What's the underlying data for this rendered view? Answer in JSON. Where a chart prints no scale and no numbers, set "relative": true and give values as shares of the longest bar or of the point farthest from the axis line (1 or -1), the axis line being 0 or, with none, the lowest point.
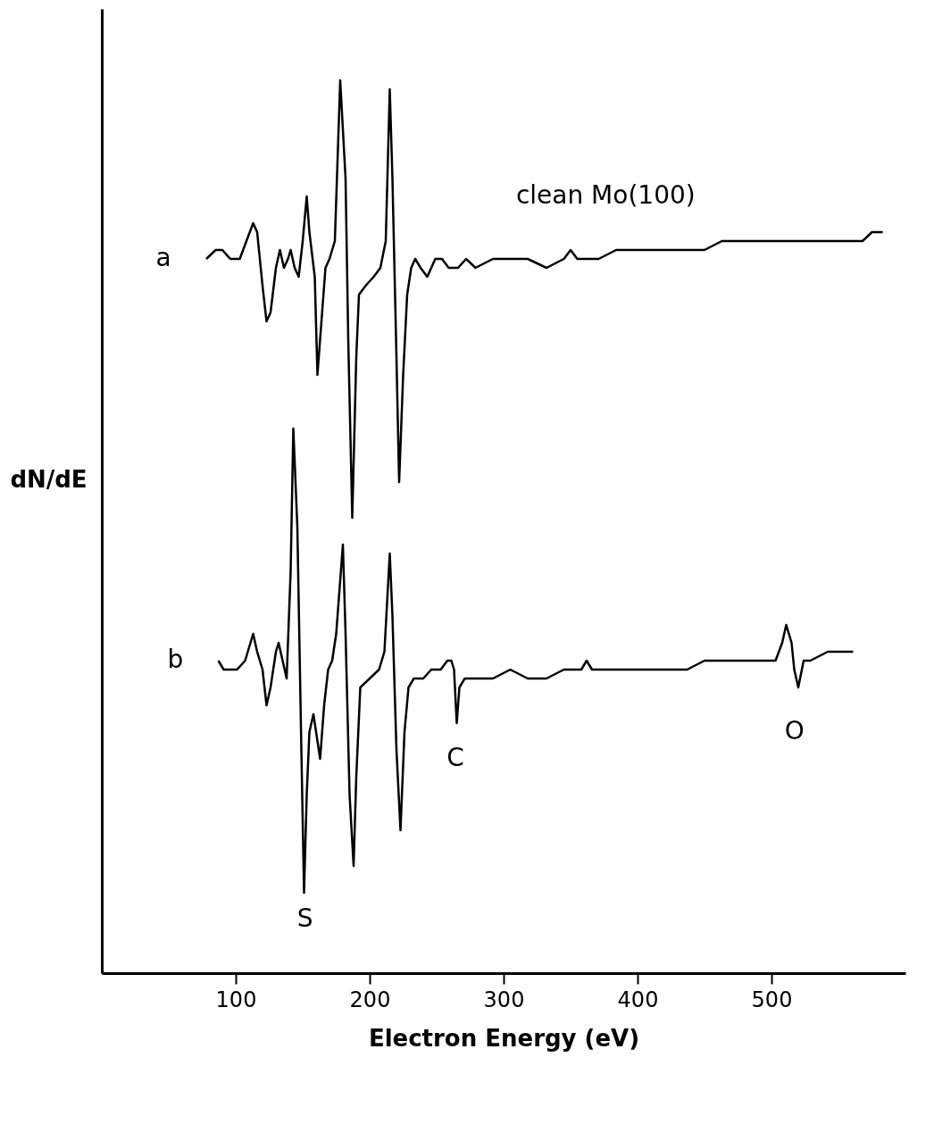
{
  "chart_data": {
    "type": "line",
    "relative": true,
    "xlabel": "Electron Energy (eV)",
    "ylabel": "dN/dE",
    "xlim": [
      0,
      600
    ],
    "xticks": [
      100,
      200,
      300,
      400,
      500
    ],
    "grid": false,
    "marker": "none",
    "line_style": "solid",
    "series": [
      {
        "name": "a",
        "color": "#000000",
        "x": [
          78,
          85,
          90,
          96,
          103,
          108,
          113,
          116,
          120,
          123,
          126,
          130,
          133,
          136,
          139,
          141,
          144,
          147,
          150,
          153,
          155,
          159,
          161,
          165,
          167,
          170,
          174,
          178,
          182,
          184,
          187,
          190,
          192,
          197,
          203,
          208,
          212,
          215,
          217,
          220,
          222,
          225,
          228,
          231,
          234,
          238,
          243,
          249,
          254,
          259,
          266,
          272,
          279,
          292,
          305,
          318,
          332,
          345,
          350,
          355,
          361,
          371,
          384,
          397,
          411,
          424,
          437,
          450,
          463,
          476,
          490,
          503,
          516,
          529,
          542,
          555,
          568,
          575,
          579,
          583
        ],
        "values": [
          0.8,
          0.81,
          0.81,
          0.8,
          0.8,
          0.82,
          0.84,
          0.83,
          0.77,
          0.73,
          0.74,
          0.79,
          0.81,
          0.79,
          0.8,
          0.81,
          0.79,
          0.78,
          0.82,
          0.87,
          0.83,
          0.78,
          0.67,
          0.75,
          0.79,
          0.8,
          0.82,
          1.0,
          0.89,
          0.71,
          0.51,
          0.69,
          0.76,
          0.77,
          0.78,
          0.79,
          0.82,
          0.99,
          0.89,
          0.69,
          0.55,
          0.67,
          0.76,
          0.79,
          0.8,
          0.79,
          0.78,
          0.8,
          0.8,
          0.79,
          0.79,
          0.8,
          0.79,
          0.8,
          0.8,
          0.8,
          0.79,
          0.8,
          0.81,
          0.8,
          0.8,
          0.8,
          0.81,
          0.81,
          0.81,
          0.81,
          0.81,
          0.81,
          0.82,
          0.82,
          0.82,
          0.82,
          0.82,
          0.82,
          0.82,
          0.82,
          0.82,
          0.83,
          0.83,
          0.83
        ]
      },
      {
        "name": "b",
        "color": "#000000",
        "x": [
          87,
          91,
          97,
          101,
          107,
          113,
          116,
          120,
          123,
          126,
          130,
          132,
          135,
          138,
          141,
          143,
          146,
          149,
          151,
          153,
          155,
          158,
          161,
          163,
          166,
          169,
          172,
          175,
          180,
          182,
          185,
          188,
          190,
          193,
          200,
          207,
          211,
          215,
          217,
          220,
          223,
          226,
          229,
          233,
          240,
          246,
          253,
          258,
          261,
          263,
          265,
          267,
          271,
          279,
          292,
          305,
          318,
          332,
          345,
          358,
          362,
          366,
          371,
          384,
          397,
          411,
          424,
          437,
          450,
          463,
          476,
          490,
          503,
          508,
          511,
          515,
          517,
          520,
          524,
          529,
          542,
          549,
          555,
          561
        ],
        "values": [
          0.35,
          0.34,
          0.34,
          0.34,
          0.35,
          0.38,
          0.36,
          0.34,
          0.3,
          0.32,
          0.36,
          0.37,
          0.35,
          0.33,
          0.45,
          0.61,
          0.5,
          0.25,
          0.09,
          0.2,
          0.27,
          0.29,
          0.26,
          0.24,
          0.3,
          0.34,
          0.35,
          0.38,
          0.48,
          0.38,
          0.2,
          0.12,
          0.22,
          0.32,
          0.33,
          0.34,
          0.36,
          0.47,
          0.4,
          0.25,
          0.16,
          0.27,
          0.32,
          0.33,
          0.33,
          0.34,
          0.34,
          0.35,
          0.35,
          0.34,
          0.28,
          0.32,
          0.33,
          0.33,
          0.33,
          0.34,
          0.33,
          0.33,
          0.34,
          0.34,
          0.35,
          0.34,
          0.34,
          0.34,
          0.34,
          0.34,
          0.34,
          0.34,
          0.35,
          0.35,
          0.35,
          0.35,
          0.35,
          0.37,
          0.39,
          0.37,
          0.34,
          0.32,
          0.35,
          0.35,
          0.36,
          0.36,
          0.36,
          0.36
        ]
      }
    ],
    "annotations": [
      "clean Mo(100)",
      "S",
      "C",
      "O"
    ]
  }
}
